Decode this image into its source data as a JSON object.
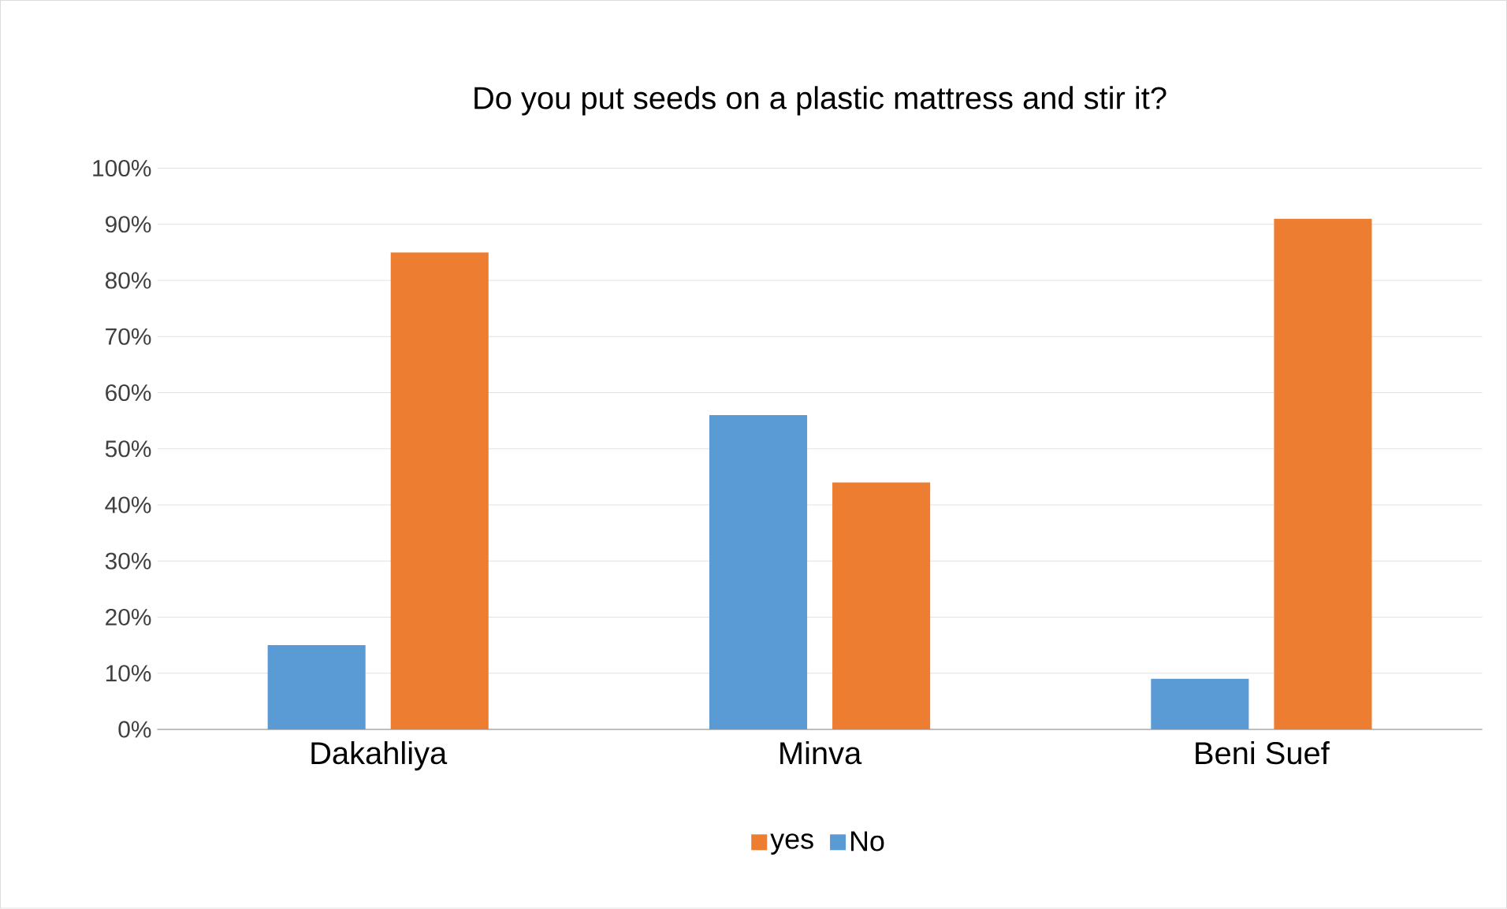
{
  "chart_data": {
    "type": "bar",
    "title": "Do you put seeds on a plastic mattress and stir it?",
    "categories": [
      "Dakahliya",
      "Minva",
      "Beni Suef"
    ],
    "series": [
      {
        "name": "No",
        "color": "#5b9bd5",
        "values": [
          15,
          56,
          9
        ]
      },
      {
        "name": "yes",
        "color": "#ed7d31",
        "values": [
          85,
          44,
          91
        ]
      }
    ],
    "ylim": [
      0,
      100
    ],
    "yticks": [
      {
        "value": 0,
        "label": "0%"
      },
      {
        "value": 10,
        "label": "10%"
      },
      {
        "value": 20,
        "label": "20%"
      },
      {
        "value": 30,
        "label": "30%"
      },
      {
        "value": 40,
        "label": "40%"
      },
      {
        "value": 50,
        "label": "50%"
      },
      {
        "value": 60,
        "label": "60%"
      },
      {
        "value": 70,
        "label": "70%"
      },
      {
        "value": 80,
        "label": "80%"
      },
      {
        "value": 90,
        "label": "90%"
      },
      {
        "value": 100,
        "label": "100%"
      }
    ],
    "grid": "y",
    "legend": "bottom"
  }
}
